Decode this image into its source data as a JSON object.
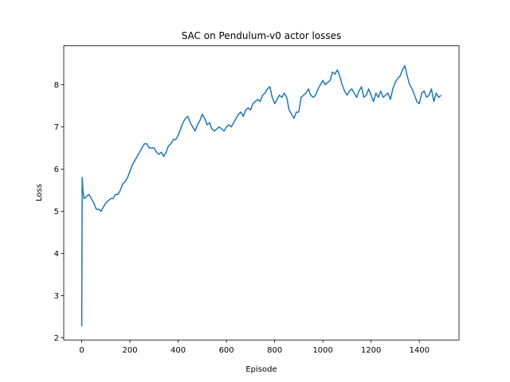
{
  "chart_data": {
    "type": "line",
    "title": "SAC on Pendulum-v0 actor losses",
    "x_label": "Episode",
    "y_label": "Loss",
    "x": [
      0,
      2,
      5,
      10,
      20,
      30,
      40,
      50,
      60,
      70,
      80,
      90,
      100,
      110,
      120,
      130,
      140,
      150,
      160,
      170,
      180,
      190,
      200,
      210,
      220,
      230,
      240,
      250,
      260,
      270,
      280,
      290,
      300,
      310,
      320,
      330,
      340,
      350,
      360,
      370,
      380,
      390,
      400,
      410,
      420,
      430,
      440,
      450,
      460,
      470,
      480,
      490,
      500,
      510,
      520,
      530,
      540,
      550,
      560,
      570,
      580,
      590,
      600,
      610,
      620,
      630,
      640,
      650,
      660,
      670,
      680,
      690,
      700,
      710,
      720,
      730,
      740,
      750,
      760,
      770,
      780,
      790,
      800,
      810,
      820,
      830,
      840,
      850,
      860,
      870,
      880,
      890,
      900,
      910,
      920,
      930,
      940,
      950,
      960,
      970,
      980,
      990,
      1000,
      1010,
      1020,
      1030,
      1040,
      1050,
      1060,
      1070,
      1080,
      1090,
      1100,
      1110,
      1120,
      1130,
      1140,
      1150,
      1160,
      1170,
      1180,
      1190,
      1200,
      1210,
      1220,
      1230,
      1240,
      1250,
      1260,
      1270,
      1280,
      1290,
      1300,
      1310,
      1320,
      1330,
      1340,
      1350,
      1360,
      1370,
      1380,
      1390,
      1400,
      1410,
      1420,
      1430,
      1440,
      1450,
      1460,
      1470,
      1480,
      1490
    ],
    "series": [
      {
        "name": "actor loss",
        "color": "#1f77b4",
        "values": [
          2.27,
          5.8,
          5.5,
          5.3,
          5.35,
          5.4,
          5.3,
          5.2,
          5.05,
          5.05,
          5.0,
          5.1,
          5.2,
          5.25,
          5.3,
          5.3,
          5.4,
          5.4,
          5.5,
          5.65,
          5.7,
          5.8,
          5.95,
          6.1,
          6.2,
          6.3,
          6.4,
          6.5,
          6.6,
          6.6,
          6.5,
          6.5,
          6.5,
          6.4,
          6.35,
          6.4,
          6.3,
          6.4,
          6.55,
          6.6,
          6.7,
          6.7,
          6.8,
          6.95,
          7.1,
          7.2,
          7.25,
          7.1,
          7.0,
          6.9,
          7.05,
          7.15,
          7.3,
          7.2,
          7.05,
          7.1,
          6.95,
          6.9,
          6.95,
          7.0,
          6.95,
          6.9,
          7.0,
          7.05,
          7.0,
          7.1,
          7.2,
          7.3,
          7.35,
          7.25,
          7.4,
          7.45,
          7.4,
          7.55,
          7.6,
          7.65,
          7.6,
          7.75,
          7.8,
          7.9,
          7.95,
          7.7,
          7.55,
          7.65,
          7.75,
          7.7,
          7.8,
          7.7,
          7.4,
          7.3,
          7.2,
          7.35,
          7.35,
          7.7,
          7.75,
          7.8,
          7.9,
          7.75,
          7.7,
          7.75,
          7.9,
          8.0,
          8.1,
          8.0,
          8.05,
          8.1,
          8.3,
          8.25,
          8.35,
          8.2,
          8.0,
          7.85,
          7.75,
          7.85,
          7.9,
          7.8,
          7.7,
          7.85,
          7.95,
          7.7,
          7.75,
          7.9,
          7.75,
          7.6,
          7.8,
          7.7,
          7.85,
          7.7,
          7.75,
          7.8,
          7.65,
          7.9,
          8.05,
          8.15,
          8.2,
          8.35,
          8.45,
          8.2,
          8.0,
          7.9,
          7.75,
          7.6,
          7.55,
          7.8,
          7.85,
          7.7,
          7.75,
          7.9,
          7.6,
          7.8,
          7.7,
          7.75
        ]
      }
    ],
    "xlim": [
      -74.5,
      1564.5
    ],
    "xticks": [
      0,
      200,
      400,
      600,
      800,
      1000,
      1200,
      1400
    ],
    "ylim": [
      1.95,
      8.92
    ],
    "yticks": [
      2,
      3,
      4,
      5,
      6,
      7,
      8
    ],
    "grid": false
  }
}
